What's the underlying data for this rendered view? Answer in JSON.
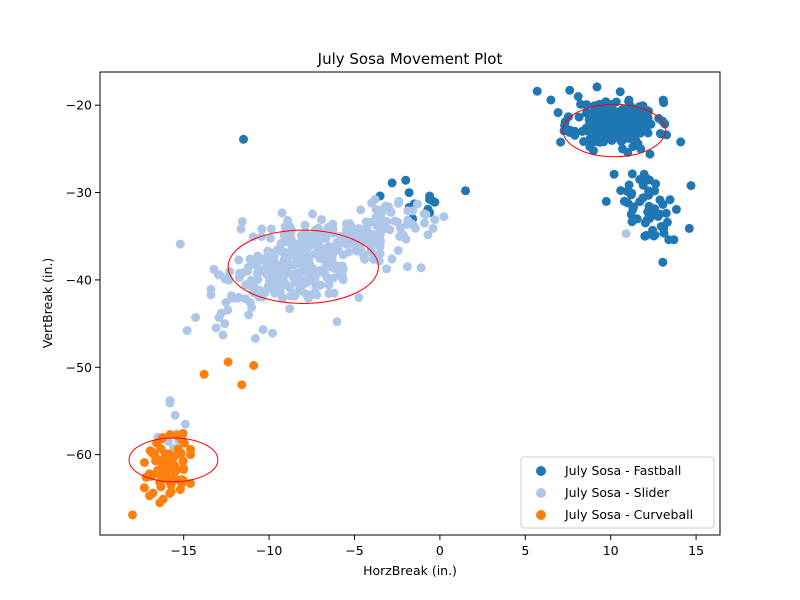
{
  "chart_data": {
    "type": "scatter",
    "title": "July Sosa Movement Plot",
    "xlabel": "HorzBreak (in.)",
    "ylabel": "VertBreak (in.)",
    "xlim": [
      -19.9,
      16.4
    ],
    "ylim": [
      -69.2,
      -16.2
    ],
    "y_inverted": true,
    "x_ticks": [
      -15,
      -10,
      -5,
      0,
      5,
      10,
      15
    ],
    "y_ticks": [
      -20,
      -30,
      -40,
      -50,
      -60
    ],
    "x_tick_labels": [
      "−15",
      "−10",
      "−5",
      "0",
      "5",
      "10",
      "15"
    ],
    "y_tick_labels": [
      "−20",
      "−30",
      "−40",
      "−50",
      "−60"
    ],
    "grid": false,
    "legend_position": "lower-right",
    "series": [
      {
        "name": "July Sosa - Fastball",
        "color": "#1f77b4",
        "clusters": [
          {
            "cx": 10.3,
            "cy": -22.0,
            "sx": 1.2,
            "sy": 1.3,
            "n": 240,
            "seed": 11
          },
          {
            "cx": 12.4,
            "cy": -31.8,
            "sx": 1.0,
            "sy": 2.0,
            "n": 45,
            "seed": 12
          }
        ],
        "points": [
          [
            -11.5,
            -23.9
          ],
          [
            5.7,
            -18.4
          ],
          [
            6.5,
            -19.4
          ],
          [
            7.6,
            -18.3
          ],
          [
            8.1,
            -19.0
          ],
          [
            7.3,
            -22.3
          ],
          [
            7.9,
            -23.0
          ],
          [
            9.2,
            -17.9
          ],
          [
            10.2,
            -27.9
          ],
          [
            14.1,
            -24.2
          ],
          [
            12.3,
            -25.6
          ],
          [
            11.0,
            -25.4
          ],
          [
            1.5,
            -29.8
          ],
          [
            -2.8,
            -28.9
          ],
          [
            -2.0,
            -28.6
          ],
          [
            -3.5,
            -30.4
          ],
          [
            -1.8,
            -31.7
          ],
          [
            -1.6,
            -33.0
          ],
          [
            -1.5,
            -31.3
          ],
          [
            -0.6,
            -32.3
          ],
          [
            -0.7,
            -31.9
          ],
          [
            -0.6,
            -30.4
          ],
          [
            -0.4,
            -31.0
          ],
          [
            -0.6,
            -30.8
          ],
          [
            -1.8,
            -30.0
          ],
          [
            -0.3,
            -31.1
          ],
          [
            11.0,
            -31.2
          ],
          [
            10.8,
            -31.0
          ],
          [
            14.7,
            -29.2
          ],
          [
            14.6,
            -34.1
          ],
          [
            13.7,
            -35.4
          ],
          [
            13.4,
            -35.4
          ],
          [
            12.0,
            -35.0
          ],
          [
            11.2,
            -32.5
          ],
          [
            11.7,
            -28.5
          ],
          [
            12.1,
            -28.4
          ]
        ]
      },
      {
        "name": "July Sosa - Slider",
        "color": "#aec7e8",
        "clusters": [
          {
            "cx": -8.3,
            "cy": -38.0,
            "sx": 1.6,
            "sy": 2.2,
            "n": 220,
            "seed": 21
          },
          {
            "cx": -5.2,
            "cy": -35.2,
            "sx": 1.3,
            "sy": 1.3,
            "n": 70,
            "seed": 22
          },
          {
            "cx": -2.3,
            "cy": -33.3,
            "sx": 1.1,
            "sy": 0.9,
            "n": 35,
            "seed": 23
          },
          {
            "cx": -11.0,
            "cy": -41.5,
            "sx": 1.2,
            "sy": 1.8,
            "n": 45,
            "seed": 24
          }
        ],
        "points": [
          [
            -15.2,
            -35.9
          ],
          [
            -12.9,
            -39.4
          ],
          [
            -13.4,
            -41.7
          ],
          [
            -14.3,
            -44.3
          ],
          [
            -14.8,
            -45.8
          ],
          [
            -13.1,
            -45.5
          ],
          [
            -12.7,
            -46.3
          ],
          [
            -12.6,
            -45.0
          ],
          [
            -11.2,
            -44.0
          ],
          [
            -10.8,
            -46.7
          ],
          [
            -9.8,
            -46.1
          ],
          [
            -8.8,
            -43.3
          ],
          [
            -7.7,
            -42.1
          ],
          [
            -4.6,
            -36.7
          ],
          [
            -3.5,
            -37.0
          ],
          [
            -1.9,
            -38.5
          ],
          [
            -1.1,
            -38.6
          ],
          [
            -3.8,
            -30.8
          ],
          [
            -4.0,
            -31.2
          ],
          [
            -2.4,
            -31.0
          ],
          [
            -1.6,
            -32.1
          ],
          [
            -0.9,
            -33.5
          ],
          [
            -0.3,
            -33.1
          ],
          [
            -0.4,
            -34.1
          ],
          [
            -15.8,
            -53.8
          ],
          [
            -15.8,
            -54.1
          ],
          [
            -15.5,
            -55.5
          ],
          [
            -15.4,
            -57.6
          ],
          [
            -15.9,
            -58.5
          ],
          [
            -14.9,
            -56.5
          ],
          [
            -15.1,
            -57.8
          ],
          [
            -16.5,
            -58.0
          ],
          [
            -15.3,
            -58.4
          ],
          [
            -15.6,
            -59.3
          ],
          [
            10.9,
            -34.7
          ]
        ]
      },
      {
        "name": "July Sosa - Curveball",
        "color": "#ff7f0e",
        "clusters": [
          {
            "cx": -16.0,
            "cy": -61.5,
            "sx": 0.6,
            "sy": 1.6,
            "n": 55,
            "seed": 31
          }
        ],
        "points": [
          [
            -12.4,
            -49.4
          ],
          [
            -10.9,
            -49.8
          ],
          [
            -11.6,
            -52.0
          ],
          [
            -13.8,
            -50.8
          ],
          [
            -18.0,
            -66.9
          ],
          [
            -17.3,
            -63.8
          ],
          [
            -17.0,
            -64.7
          ],
          [
            -16.8,
            -64.4
          ],
          [
            -16.4,
            -65.5
          ],
          [
            -16.2,
            -65.1
          ],
          [
            -15.2,
            -64.0
          ],
          [
            -15.0,
            -63.0
          ],
          [
            -14.6,
            -63.3
          ],
          [
            -15.0,
            -61.7
          ],
          [
            -14.6,
            -60.0
          ],
          [
            -14.6,
            -59.4
          ],
          [
            -15.1,
            -58.3
          ],
          [
            -15.4,
            -57.8
          ],
          [
            -15.8,
            -57.7
          ],
          [
            -16.3,
            -58.2
          ],
          [
            -17.0,
            -62.2
          ],
          [
            -17.2,
            -62.6
          ],
          [
            -17.3,
            -60.9
          ],
          [
            -16.8,
            -62.3
          ]
        ]
      }
    ],
    "ellipses": [
      {
        "cx": 10.2,
        "cy": -22.9,
        "rx": 3.0,
        "ry": 3.0,
        "color": "#ff0000"
      },
      {
        "cx": -8.0,
        "cy": -38.5,
        "rx": 4.4,
        "ry": 4.2,
        "color": "#ff0000"
      },
      {
        "cx": -15.6,
        "cy": -60.6,
        "rx": 2.6,
        "ry": 2.5,
        "color": "#ff0000"
      }
    ]
  }
}
